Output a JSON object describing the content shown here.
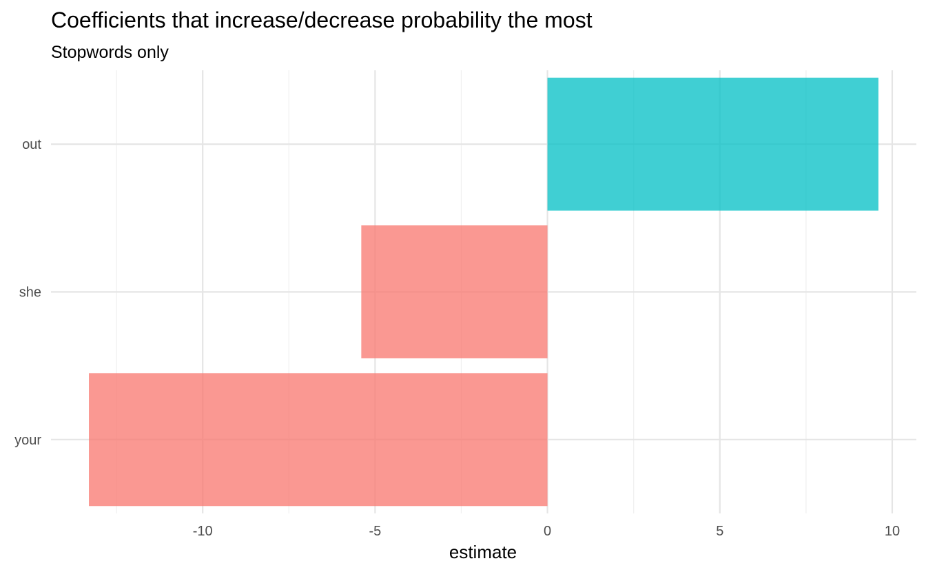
{
  "chart_data": {
    "type": "bar",
    "orientation": "horizontal",
    "title": "Coefficients that increase/decrease probability the most",
    "subtitle": "Stopwords only",
    "xlabel": "estimate",
    "ylabel": "",
    "categories": [
      "your",
      "she",
      "out"
    ],
    "values": [
      -13.3,
      -5.4,
      9.6
    ],
    "x_ticks": [
      "-10",
      "-5",
      "0",
      "5",
      "10"
    ],
    "x_tick_values": [
      -10,
      -5,
      0,
      5,
      10
    ],
    "xlim": [
      -14.4,
      10.7
    ],
    "grid": true,
    "legend": "none",
    "colors": {
      "positive": "#00BFC4",
      "negative": "#F8766D",
      "bar_opacity": 0.75,
      "grid_major": "#E5E5E5",
      "grid_minor": "#EFEFEF",
      "tick_text": "#4D4D4D"
    }
  }
}
